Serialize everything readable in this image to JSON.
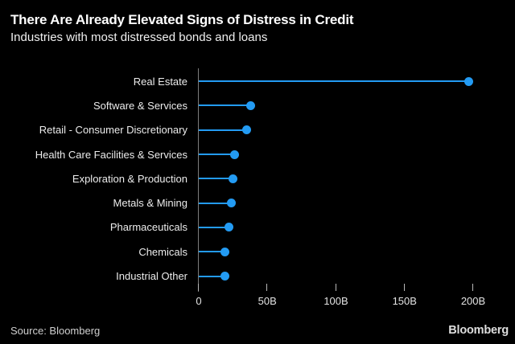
{
  "header": {
    "title": "There Are Already Elevated Signs of Distress in Credit",
    "subtitle": "Industries with most distressed bonds and loans"
  },
  "chart_data": {
    "type": "bar",
    "style": "lollipop",
    "orientation": "horizontal",
    "title": "There Are Already Elevated Signs of Distress in Credit",
    "subtitle": "Industries with most distressed bonds and loans",
    "categories": [
      "Real Estate",
      "Software & Services",
      "Retail - Consumer Discretionary",
      "Health Care Facilities & Services",
      "Exploration & Production",
      "Metals & Mining",
      "Pharmaceuticals",
      "Chemicals",
      "Industrial Other"
    ],
    "values": [
      197,
      38,
      35,
      26,
      25,
      24,
      22,
      19,
      19
    ],
    "unit": "B",
    "xlabel": "",
    "ylabel": "",
    "xlim": [
      0,
      200
    ],
    "x_ticks": [
      {
        "value": 0,
        "label": "0"
      },
      {
        "value": 50,
        "label": "50B"
      },
      {
        "value": 100,
        "label": "100B"
      },
      {
        "value": 150,
        "label": "150B"
      },
      {
        "value": 200,
        "label": "200B"
      }
    ],
    "grid": false,
    "legend": null,
    "accent_color": "#239bf3"
  },
  "footer": {
    "source": "Source: Bloomberg",
    "brand": "Bloomberg"
  },
  "colors": {
    "background": "#000000",
    "accent": "#239bf3",
    "axis": "#7d7d7d",
    "tick": "#b8b8b8",
    "text": "#f2f2f2",
    "muted": "#cfcfcf"
  }
}
